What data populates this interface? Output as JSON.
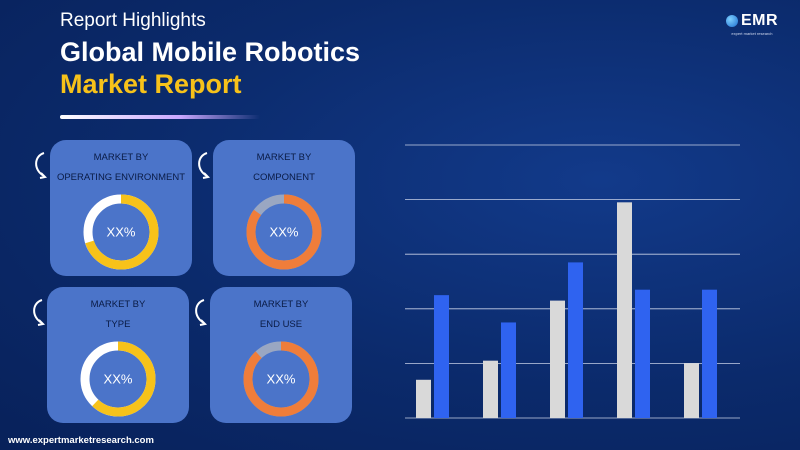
{
  "header": {
    "subtitle": "Report Highlights",
    "title_line1": "Global Mobile Robotics",
    "title_line2": "Market Report"
  },
  "logo": {
    "text": "EMR",
    "tagline": "expert market research"
  },
  "cards": [
    {
      "label_line1": "MARKET BY",
      "label_line2": "OPERATING ENVIRONMENT",
      "value": "XX%",
      "ring_color": "#f7c21a",
      "fill_fraction": 0.7
    },
    {
      "label_line1": "MARKET BY",
      "label_line2": "COMPONENT",
      "value": "XX%",
      "ring_color": "#ef7d3a",
      "fill_fraction": 0.85
    },
    {
      "label_line1": "MARKET BY",
      "label_line2": "TYPE",
      "value": "XX%",
      "ring_color": "#f7c21a",
      "fill_fraction": 0.62
    },
    {
      "label_line1": "MARKET BY",
      "label_line2": "END USE",
      "value": "XX%",
      "ring_color": "#ef7d3a",
      "fill_fraction": 0.88
    }
  ],
  "colors": {
    "background": "#0b2a6b",
    "card": "#4b74c9",
    "accent_yellow": "#f7c21a",
    "accent_orange": "#ef7d3a",
    "bar_grey": "#d9d9d9",
    "bar_blue": "#2f63f0"
  },
  "chart_data": {
    "type": "bar",
    "categories": [
      "",
      "",
      "",
      "",
      ""
    ],
    "series": [
      {
        "values": [
          0.7,
          1.05,
          2.15,
          3.95,
          1.0
        ]
      },
      {
        "values": [
          2.25,
          1.75,
          2.85,
          2.35,
          2.35
        ]
      }
    ],
    "ylim": [
      0,
      5
    ],
    "grid": true
  },
  "footer": {
    "url": "www.expertmarketresearch.com"
  }
}
